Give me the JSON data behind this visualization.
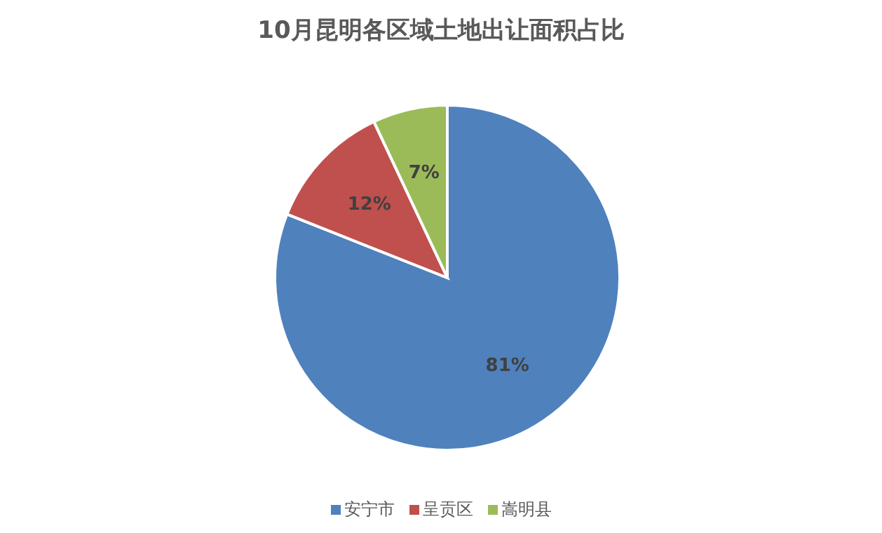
{
  "chart_data": {
    "type": "pie",
    "title": "10月昆明各区域土地出让面积占比",
    "categories": [
      "安宁市",
      "呈贡区",
      "嵩明县"
    ],
    "values": [
      81,
      12,
      7
    ],
    "colors": [
      "#4f81bd",
      "#c0504d",
      "#9bbb59"
    ],
    "value_labels": [
      "81%",
      "12%",
      "7%"
    ],
    "legend": "bottom"
  }
}
